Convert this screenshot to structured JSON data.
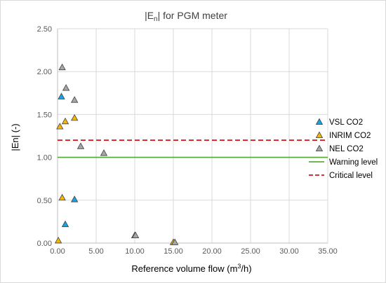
{
  "chart_data": {
    "type": "scatter",
    "title": {
      "prefix": "|E",
      "sub": "n",
      "suffix": "| for PGM meter"
    },
    "xlabel": {
      "prefix": "Reference volume flow (m",
      "sup": "3",
      "suffix": "/h)"
    },
    "ylabel": "|En| (-)",
    "xlim": [
      0,
      35
    ],
    "ylim": [
      0,
      2.5
    ],
    "x_ticks": [
      "0.00",
      "5.00",
      "10.00",
      "15.00",
      "20.00",
      "25.00",
      "30.00",
      "35.00"
    ],
    "y_ticks": [
      "0.00",
      "0.50",
      "1.00",
      "1.50",
      "2.00",
      "2.50"
    ],
    "grid": true,
    "legend_position": "right",
    "series": [
      {
        "name": "VSL CO2",
        "marker": "triangle",
        "color": "#1aa3e0",
        "points": [
          [
            0.5,
            1.71
          ],
          [
            1.0,
            0.22
          ],
          [
            2.2,
            0.51
          ]
        ]
      },
      {
        "name": "INRIM CO2",
        "marker": "triangle",
        "color": "#f5b800",
        "points": [
          [
            0.1,
            0.03
          ],
          [
            0.3,
            1.36
          ],
          [
            0.6,
            0.53
          ],
          [
            1.0,
            1.42
          ],
          [
            2.2,
            1.46
          ],
          [
            10.0,
            0.09
          ],
          [
            15.0,
            0.01
          ]
        ]
      },
      {
        "name": "NEL CO2",
        "marker": "triangle",
        "color": "#a6a6a6",
        "points": [
          [
            0.6,
            2.05
          ],
          [
            1.1,
            1.81
          ],
          [
            2.2,
            1.67
          ],
          [
            3.0,
            1.13
          ],
          [
            6.0,
            1.05
          ],
          [
            10.1,
            0.09
          ],
          [
            15.2,
            0.01
          ]
        ]
      }
    ],
    "lines": [
      {
        "name": "Warning level",
        "y": 1.0,
        "color": "#5aad3b",
        "style": "solid"
      },
      {
        "name": "Critical level",
        "y": 1.2,
        "color": "#d0161d",
        "style": "dashed"
      }
    ]
  }
}
